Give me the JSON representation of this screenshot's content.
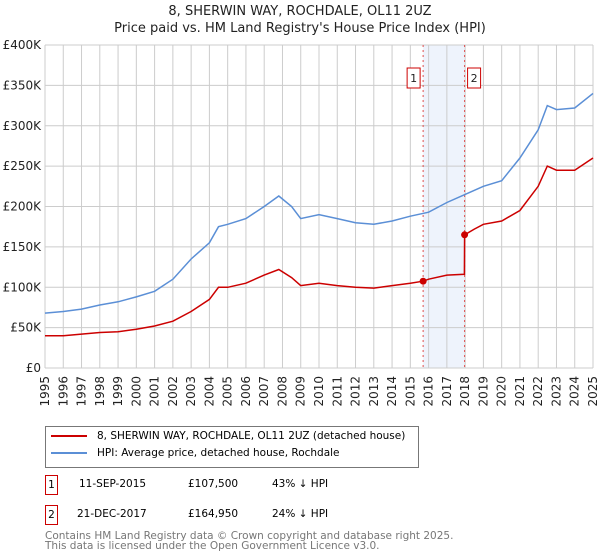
{
  "header": {
    "title": "8, SHERWIN WAY, ROCHDALE, OL11 2UZ",
    "subtitle": "Price paid vs. HM Land Registry's House Price Index (HPI)"
  },
  "chart_data": {
    "type": "line",
    "title": "8, SHERWIN WAY, ROCHDALE, OL11 2UZ",
    "xlim": [
      1995,
      2025
    ],
    "ylim": [
      0,
      400000
    ],
    "x_ticks": [
      "1995",
      "1996",
      "1997",
      "1998",
      "1999",
      "2000",
      "2001",
      "2002",
      "2003",
      "2004",
      "2005",
      "2006",
      "2007",
      "2008",
      "2009",
      "2010",
      "2011",
      "2012",
      "2013",
      "2014",
      "2015",
      "2016",
      "2017",
      "2018",
      "2019",
      "2020",
      "2021",
      "2022",
      "2023",
      "2024",
      "2025"
    ],
    "y_ticks": [
      {
        "v": 0,
        "label": "£0"
      },
      {
        "v": 50000,
        "label": "£50K"
      },
      {
        "v": 100000,
        "label": "£100K"
      },
      {
        "v": 150000,
        "label": "£150K"
      },
      {
        "v": 200000,
        "label": "£200K"
      },
      {
        "v": 250000,
        "label": "£250K"
      },
      {
        "v": 300000,
        "label": "£300K"
      },
      {
        "v": 350000,
        "label": "£350K"
      },
      {
        "v": 400000,
        "label": "£400K"
      }
    ],
    "grid": true,
    "series": [
      {
        "name": "8, SHERWIN WAY, ROCHDALE, OL11 2UZ (detached house)",
        "color": "#cc0000",
        "x": [
          1995,
          1996,
          1997,
          1998,
          1999,
          2000,
          2001,
          2002,
          2003,
          2004,
          2004.5,
          2005,
          2006,
          2007,
          2007.8,
          2008.5,
          2009,
          2010,
          2011,
          2012,
          2013,
          2014,
          2015,
          2015.7,
          2016,
          2017,
          2017.96,
          2017.97,
          2018.5,
          2019,
          2020,
          2021,
          2022,
          2022.5,
          2023,
          2024,
          2025
        ],
        "y": [
          40000,
          40000,
          42000,
          44000,
          45000,
          48000,
          52000,
          58000,
          70000,
          85000,
          100000,
          100000,
          105000,
          115000,
          122000,
          112000,
          102000,
          105000,
          102000,
          100000,
          99000,
          102000,
          105000,
          107500,
          110000,
          115000,
          116000,
          164950,
          172000,
          178000,
          182000,
          195000,
          225000,
          250000,
          245000,
          245000,
          260000
        ]
      },
      {
        "name": "HPI: Average price, detached house, Rochdale",
        "color": "#5b8fd6",
        "x": [
          1995,
          1996,
          1997,
          1998,
          1999,
          2000,
          2001,
          2002,
          2003,
          2004,
          2004.5,
          2005,
          2006,
          2007,
          2007.8,
          2008.5,
          2009,
          2010,
          2011,
          2012,
          2013,
          2014,
          2015,
          2016,
          2017,
          2018,
          2019,
          2020,
          2021,
          2022,
          2022.5,
          2023,
          2024,
          2025
        ],
        "y": [
          68000,
          70000,
          73000,
          78000,
          82000,
          88000,
          95000,
          110000,
          135000,
          155000,
          175000,
          178000,
          185000,
          200000,
          213000,
          200000,
          185000,
          190000,
          185000,
          180000,
          178000,
          182000,
          188000,
          193000,
          205000,
          215000,
          225000,
          232000,
          260000,
          295000,
          325000,
          320000,
          322000,
          340000
        ]
      }
    ],
    "sales": [
      {
        "id": "1",
        "x": 2015.7,
        "y": 107500,
        "date": "11-SEP-2015",
        "price": "£107,500",
        "delta": "43% ↓ HPI"
      },
      {
        "id": "2",
        "x": 2017.97,
        "y": 164950,
        "date": "21-DEC-2017",
        "price": "£164,950",
        "delta": "24% ↓ HPI"
      }
    ],
    "legend_position": "below"
  },
  "legend": {
    "red": "8, SHERWIN WAY, ROCHDALE, OL11 2UZ (detached house)",
    "blue": "HPI: Average price, detached house, Rochdale"
  },
  "footer": {
    "line1": "Contains HM Land Registry data © Crown copyright and database right 2025.",
    "line2": "This data is licensed under the Open Government Licence v3.0."
  }
}
